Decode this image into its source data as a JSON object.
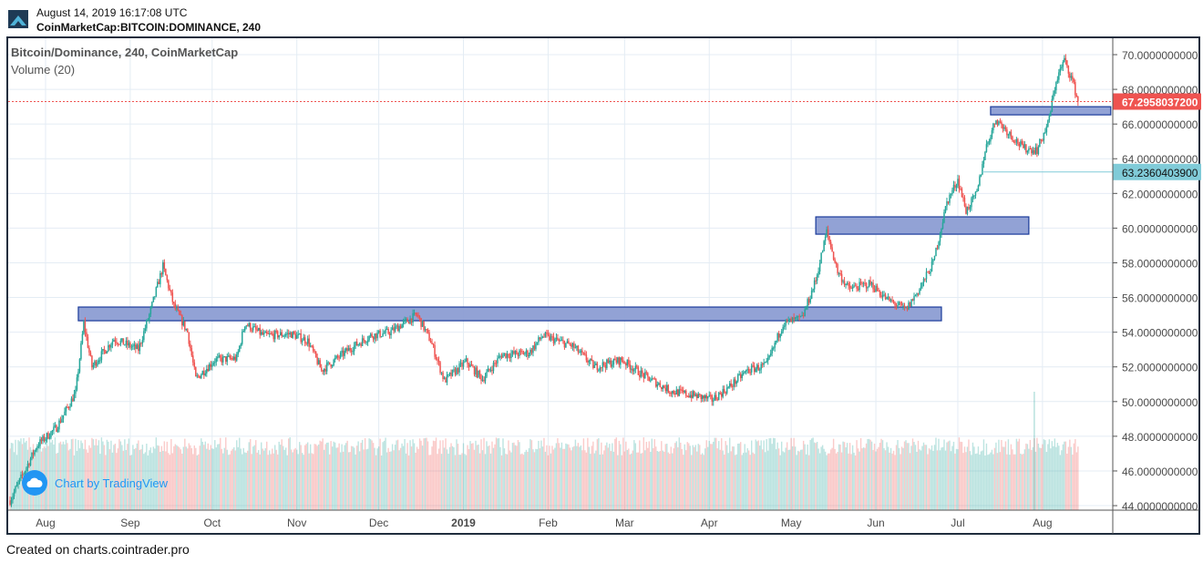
{
  "header": {
    "timestamp": "August 14, 2019 16:17:08 UTC",
    "symbol": "CoinMarketCap:BITCOIN:DOMINANCE, 240"
  },
  "legend": {
    "title": "Bitcoin/Dominance, 240, CoinMarketCap",
    "volume": "Volume (20)"
  },
  "watermark": "Chart by TradingView",
  "footer": "Created on charts.cointrader.pro",
  "colors": {
    "up": "#26a69a",
    "down": "#ef5350",
    "zone_fill": "#8c9dd3",
    "zone_border": "#1a3a9a",
    "last_price": "#ef5350",
    "ray": "#80cbd8"
  },
  "chart_data": {
    "type": "candlestick",
    "title": "Bitcoin/Dominance, 240, CoinMarketCap",
    "ylim": [
      44,
      70
    ],
    "y_ticks": [
      "44.0000000000",
      "46.0000000000",
      "48.0000000000",
      "50.0000000000",
      "52.0000000000",
      "54.0000000000",
      "56.0000000000",
      "58.0000000000",
      "60.0000000000",
      "62.0000000000",
      "64.0000000000",
      "66.0000000000",
      "68.0000000000",
      "70.0000000000"
    ],
    "x_ticks": [
      {
        "date": "2018-08-01",
        "label": "Aug"
      },
      {
        "date": "2018-09-01",
        "label": "Sep"
      },
      {
        "date": "2018-10-01",
        "label": "Oct"
      },
      {
        "date": "2018-11-01",
        "label": "Nov"
      },
      {
        "date": "2018-12-01",
        "label": "Dec"
      },
      {
        "date": "2019-01-01",
        "label": "2019",
        "bold": true
      },
      {
        "date": "2019-02-01",
        "label": "Feb"
      },
      {
        "date": "2019-03-01",
        "label": "Mar"
      },
      {
        "date": "2019-04-01",
        "label": "Apr"
      },
      {
        "date": "2019-05-01",
        "label": "May"
      },
      {
        "date": "2019-06-01",
        "label": "Jun"
      },
      {
        "date": "2019-07-01",
        "label": "Jul"
      },
      {
        "date": "2019-08-01",
        "label": "Aug"
      }
    ],
    "x_range": [
      "2018-07-19",
      "2019-09-02"
    ],
    "close_keypoints": [
      [
        "2018-07-19",
        44.3
      ],
      [
        "2018-07-29",
        47.5
      ],
      [
        "2018-08-05",
        48.5
      ],
      [
        "2018-08-12",
        50.5
      ],
      [
        "2018-08-15",
        54.5
      ],
      [
        "2018-08-18",
        52.0
      ],
      [
        "2018-08-26",
        53.6
      ],
      [
        "2018-09-04",
        53.0
      ],
      [
        "2018-09-08",
        55.0
      ],
      [
        "2018-09-13",
        57.8
      ],
      [
        "2018-09-17",
        55.5
      ],
      [
        "2018-09-22",
        54.0
      ],
      [
        "2018-09-25",
        51.3
      ],
      [
        "2018-10-02",
        52.4
      ],
      [
        "2018-10-10",
        52.5
      ],
      [
        "2018-10-13",
        54.5
      ],
      [
        "2018-10-20",
        53.8
      ],
      [
        "2018-10-30",
        53.9
      ],
      [
        "2018-11-05",
        53.5
      ],
      [
        "2018-11-10",
        51.8
      ],
      [
        "2018-11-20",
        53.0
      ],
      [
        "2018-11-28",
        53.8
      ],
      [
        "2018-12-05",
        54.0
      ],
      [
        "2018-12-10",
        54.5
      ],
      [
        "2018-12-15",
        55.0
      ],
      [
        "2018-12-20",
        53.5
      ],
      [
        "2018-12-25",
        51.2
      ],
      [
        "2019-01-02",
        52.3
      ],
      [
        "2019-01-08",
        51.3
      ],
      [
        "2019-01-15",
        52.7
      ],
      [
        "2019-01-25",
        52.8
      ],
      [
        "2019-01-30",
        53.8
      ],
      [
        "2019-02-10",
        53.2
      ],
      [
        "2019-02-18",
        52.0
      ],
      [
        "2019-02-28",
        52.4
      ],
      [
        "2019-03-08",
        51.5
      ],
      [
        "2019-03-18",
        50.6
      ],
      [
        "2019-03-28",
        50.3
      ],
      [
        "2019-04-02",
        50.1
      ],
      [
        "2019-04-08",
        50.8
      ],
      [
        "2019-04-15",
        51.8
      ],
      [
        "2019-04-22",
        52.1
      ],
      [
        "2019-04-28",
        54.5
      ],
      [
        "2019-05-05",
        54.8
      ],
      [
        "2019-05-10",
        57.0
      ],
      [
        "2019-05-14",
        59.8
      ],
      [
        "2019-05-18",
        57.5
      ],
      [
        "2019-05-22",
        56.5
      ],
      [
        "2019-05-30",
        56.8
      ],
      [
        "2019-06-05",
        55.9
      ],
      [
        "2019-06-12",
        55.3
      ],
      [
        "2019-06-17",
        56.5
      ],
      [
        "2019-06-22",
        58.0
      ],
      [
        "2019-06-27",
        61.5
      ],
      [
        "2019-07-01",
        62.8
      ],
      [
        "2019-07-04",
        61.0
      ],
      [
        "2019-07-08",
        62.0
      ],
      [
        "2019-07-11",
        64.5
      ],
      [
        "2019-07-15",
        66.3
      ],
      [
        "2019-07-19",
        65.6
      ],
      [
        "2019-07-25",
        64.6
      ],
      [
        "2019-07-30",
        64.5
      ],
      [
        "2019-08-03",
        66.0
      ],
      [
        "2019-08-06",
        68.5
      ],
      [
        "2019-08-09",
        69.7
      ],
      [
        "2019-08-12",
        68.5
      ],
      [
        "2019-08-14",
        67.3
      ]
    ],
    "zones": [
      {
        "from": "2018-08-13",
        "to": "2019-06-25",
        "top": 55.45,
        "bottom": 54.66
      },
      {
        "from": "2019-05-10",
        "to": "2019-07-27",
        "top": 60.65,
        "bottom": 59.65
      },
      {
        "from": "2019-07-13",
        "to": "2019-08-26",
        "top": 67.0,
        "bottom": 66.53
      }
    ],
    "last_price": {
      "value": 67.29580372,
      "label": "67.2958037200"
    },
    "horizontal_ray": {
      "from": "2019-07-10",
      "value": 63.23604039,
      "label": "63.2360403900"
    },
    "volume_spike": {
      "date": "2019-07-29"
    }
  }
}
